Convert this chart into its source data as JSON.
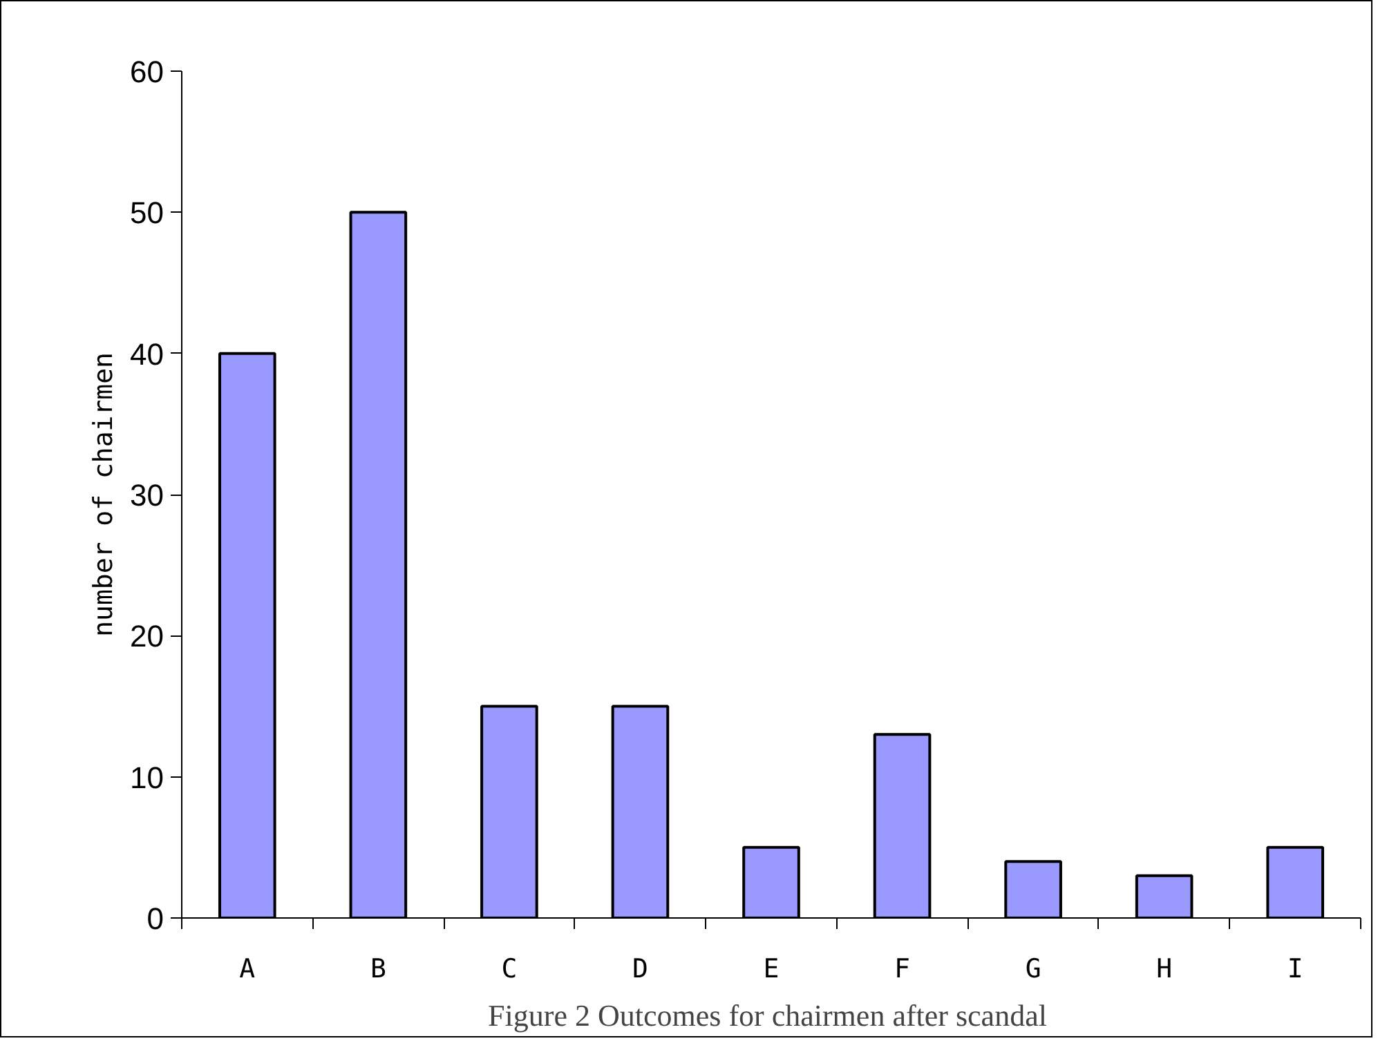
{
  "chart_data": {
    "type": "bar",
    "title": "Figure 2  Outcomes for chairmen after scandal",
    "ylabel": "number of chairmen",
    "categories": [
      "A",
      "B",
      "C",
      "D",
      "E",
      "F",
      "G",
      "H",
      "I"
    ],
    "values": [
      40,
      50,
      15,
      15,
      5,
      13,
      4,
      3,
      5
    ],
    "color": "#9999ff",
    "ylim": [
      0,
      60
    ],
    "yticks": [
      0,
      10,
      20,
      30,
      40,
      50,
      60
    ],
    "grid": false
  }
}
